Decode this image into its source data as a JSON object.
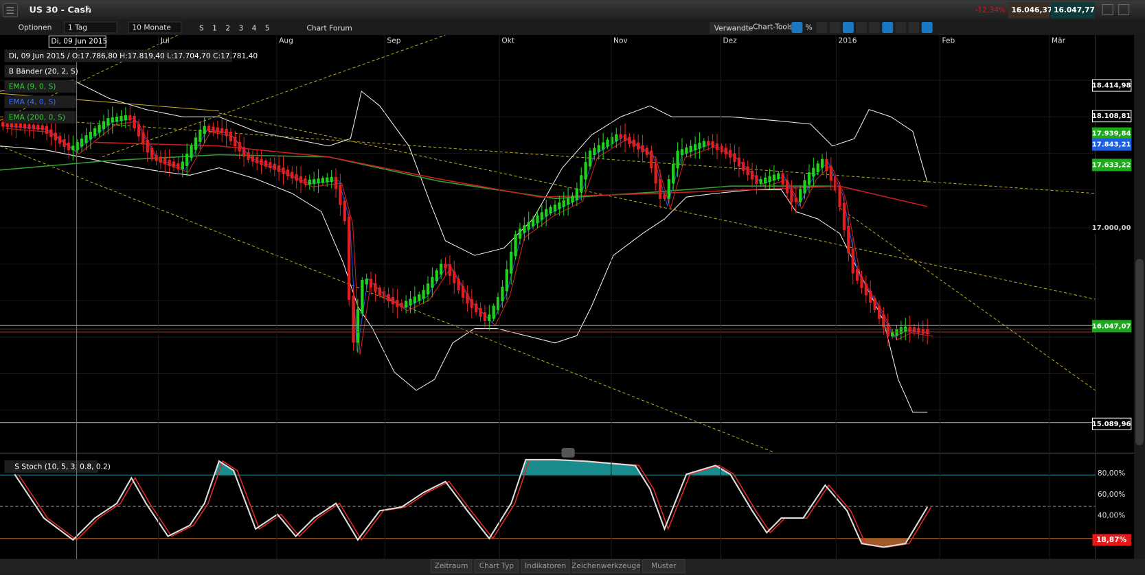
{
  "title_bar": {
    "symbol": "US 30 - Cash",
    "change": "-12,34%",
    "bid": "16.046,37",
    "ask": "16.047,77"
  },
  "toolbar": {
    "options": "Optionen",
    "interval": "1 Tag",
    "range": "10 Monate",
    "quick": [
      "S",
      "1",
      "2",
      "3",
      "4",
      "5"
    ],
    "forum": "Chart Forum",
    "related": "Verwandte",
    "tools": "Chart-Tools",
    "percent": "%"
  },
  "chart": {
    "tooltip_date": "Di, 09 Jun 2015",
    "ohlc": "Di, 09 Jun 2015 / O:17.786,80  H:17.819,40  L:17.704,70  C:17.781,40",
    "indicators": [
      "B Bänder (20, 2, S)",
      "EMA (9, 0, S)",
      "EMA (4, 0, S)",
      "EMA (200, 0, S)"
    ],
    "months": [
      "Jul",
      "Aug",
      "Sep",
      "Okt",
      "Nov",
      "Dez",
      "2016",
      "Feb",
      "Mär"
    ],
    "price_labels": [
      "18.414,98",
      "18.108,81",
      "17.939,84",
      "17.843,21",
      "17.633,22",
      "17.000,00",
      "16.047,07",
      "15.089,96"
    ]
  },
  "oscillator": {
    "name": "S Stoch (10, 5, 3, 0.8, 0.2)",
    "levels": [
      "80,00%",
      "60,00%",
      "40,00%"
    ],
    "current": "18,87%"
  },
  "bottom_bar": {
    "tabs": [
      "Zeitraum",
      "Chart Typ",
      "Indikatoren",
      "Zeichenwerkzeuge",
      "Muster"
    ]
  }
}
